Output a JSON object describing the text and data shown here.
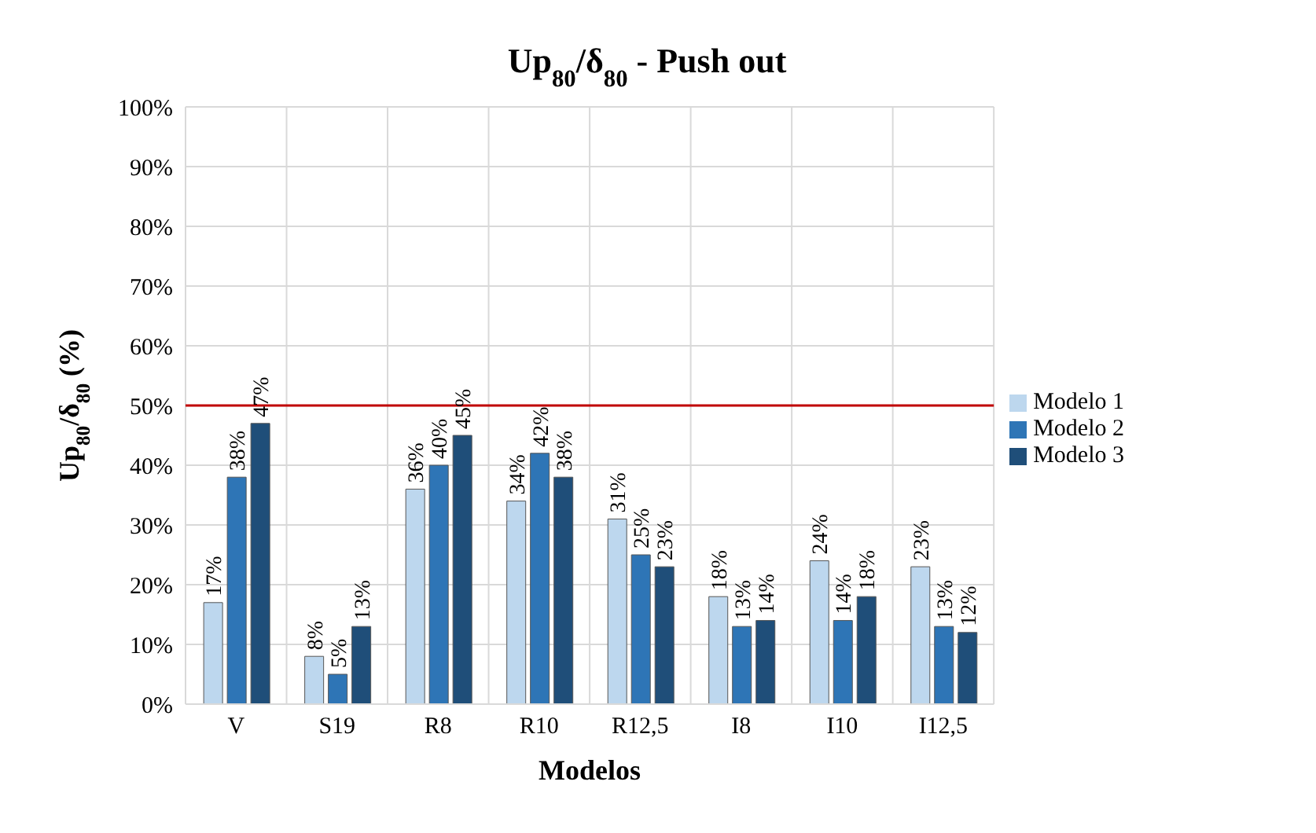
{
  "chart_data": {
    "type": "bar",
    "title": "Up$_{80}$/δ$_{80}$ - Push out",
    "xlabel": "Modelos",
    "ylabel": "Up$_{80}$/δ$_{80}$ (%)",
    "categories": [
      "V",
      "S19",
      "R8",
      "R10",
      "R12,5",
      "I8",
      "I10",
      "I12,5"
    ],
    "series": [
      {
        "name": "Modelo 1",
        "color": "#bdd7ee",
        "values": [
          17,
          8,
          36,
          34,
          31,
          18,
          24,
          23
        ],
        "value_labels": [
          "17%",
          "8%",
          "36%",
          "34%",
          "31%",
          "18%",
          "24%",
          "23%"
        ]
      },
      {
        "name": "Modelo 2",
        "color": "#2e75b6",
        "values": [
          38,
          5,
          40,
          42,
          25,
          13,
          14,
          13
        ],
        "value_labels": [
          "38%",
          "5%",
          "40%",
          "42%",
          "25%",
          "13%",
          "14%",
          "13%"
        ]
      },
      {
        "name": "Modelo 3",
        "color": "#1f4e79",
        "values": [
          47,
          13,
          45,
          38,
          23,
          14,
          18,
          12
        ],
        "value_labels": [
          "47%",
          "13%",
          "45%",
          "38%",
          "23%",
          "14%",
          "18%",
          "12%"
        ]
      }
    ],
    "ylim": [
      0,
      100
    ],
    "yticks": [
      {
        "value": 0,
        "label": "0%"
      },
      {
        "value": 10,
        "label": "10%"
      },
      {
        "value": 20,
        "label": "20%"
      },
      {
        "value": 30,
        "label": "30%"
      },
      {
        "value": 40,
        "label": "40%"
      },
      {
        "value": 50,
        "label": "50%"
      },
      {
        "value": 60,
        "label": "60%"
      },
      {
        "value": 70,
        "label": "70%"
      },
      {
        "value": 80,
        "label": "80%"
      },
      {
        "value": 90,
        "label": "90%"
      },
      {
        "value": 100,
        "label": "100%"
      }
    ],
    "ref_lines": [
      {
        "axis": "y",
        "value": 50,
        "color": "#c00000"
      }
    ],
    "grid": true,
    "legend": "right"
  }
}
